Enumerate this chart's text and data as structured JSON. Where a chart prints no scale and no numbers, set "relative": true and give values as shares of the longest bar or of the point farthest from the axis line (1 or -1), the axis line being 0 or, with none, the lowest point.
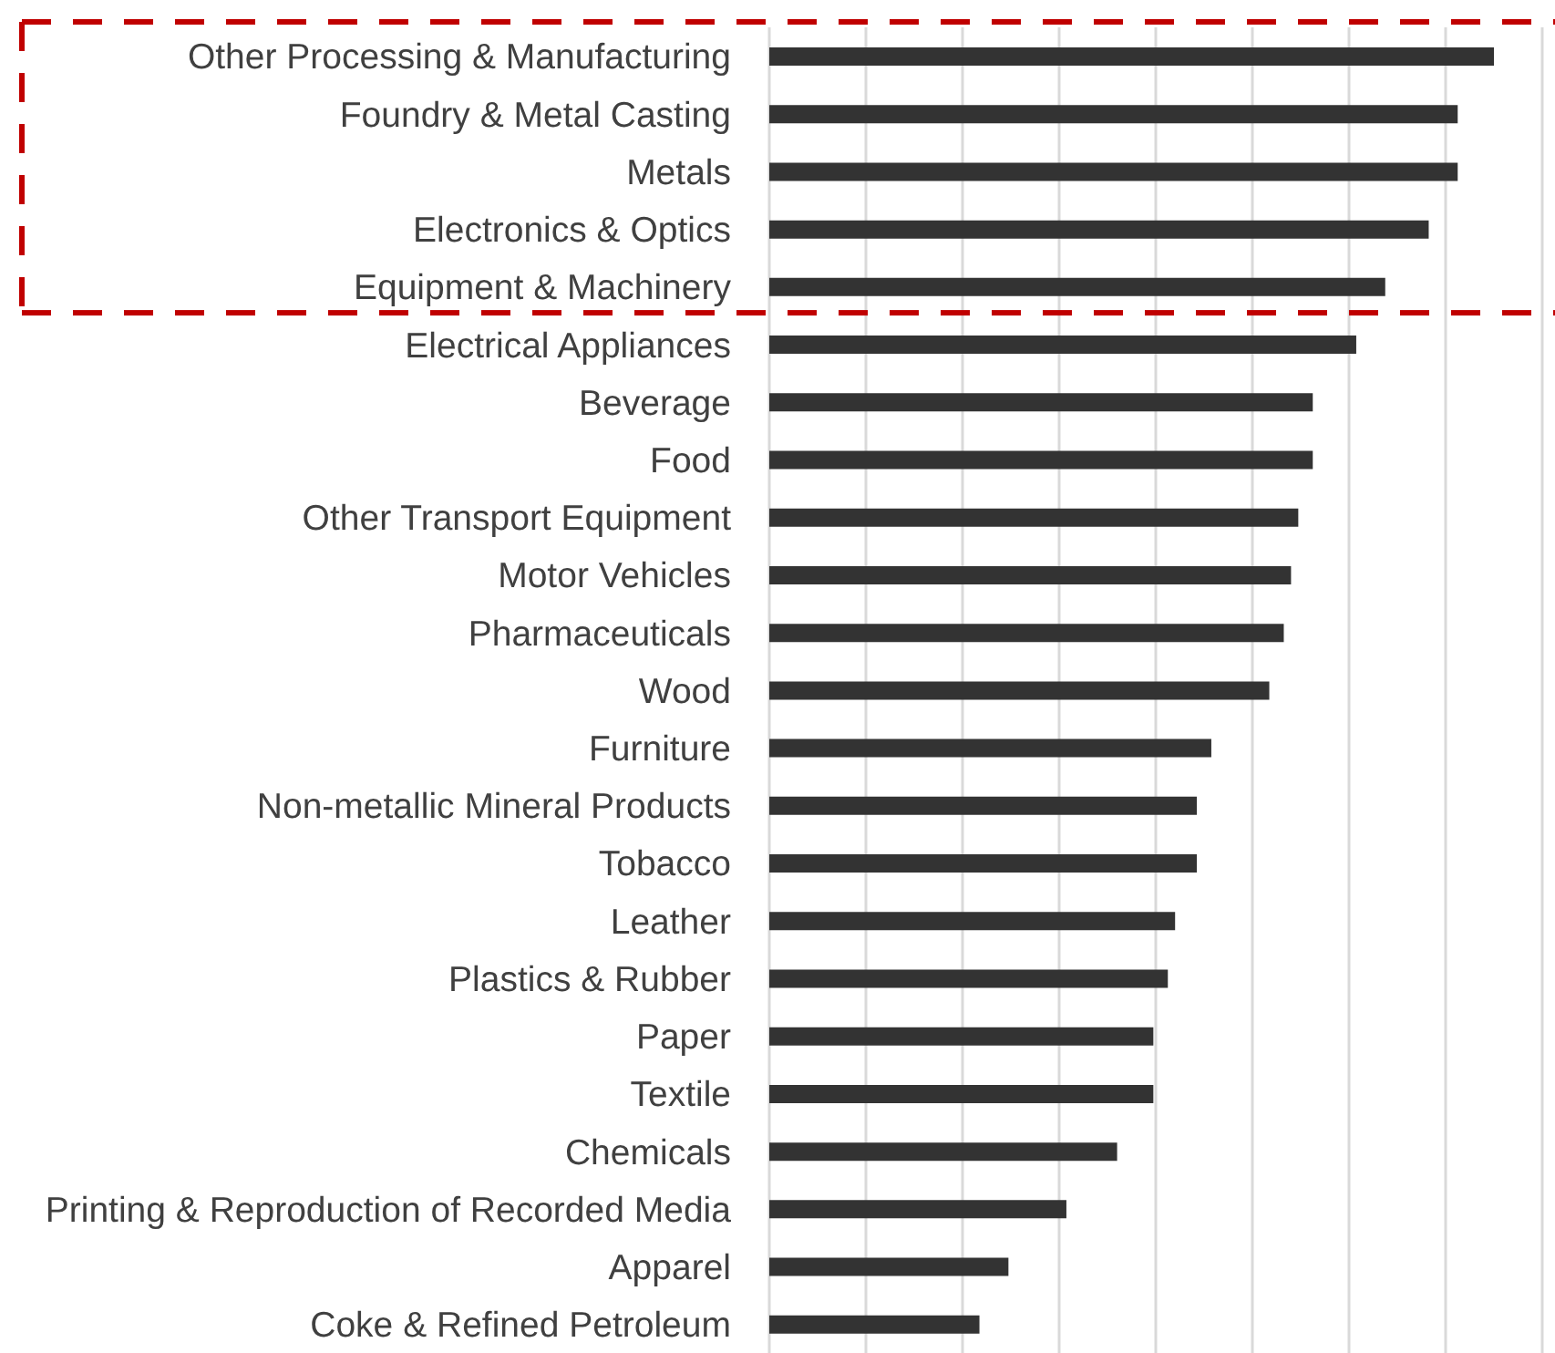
{
  "chart_data": {
    "type": "bar",
    "orientation": "horizontal",
    "relative": true,
    "categories": [
      "Other Processing & Manufacturing",
      "Foundry & Metal Casting",
      "Metals",
      "Electronics & Optics",
      "Equipment & Machinery",
      "Electrical Appliances",
      "Beverage",
      "Food",
      "Other Transport Equipment",
      "Motor Vehicles",
      "Pharmaceuticals",
      "Wood",
      "Furniture",
      "Non-metallic Mineral Products",
      "Tobacco",
      "Leather",
      "Plastics & Rubber",
      "Paper",
      "Textile",
      "Chemicals",
      "Printing & Reproduction of Recorded Media",
      "Apparel",
      "Coke & Refined Petroleum"
    ],
    "values": [
      1,
      0.95,
      0.95,
      0.91,
      0.85,
      0.81,
      0.75,
      0.75,
      0.73,
      0.72,
      0.71,
      0.69,
      0.61,
      0.59,
      0.59,
      0.56,
      0.55,
      0.53,
      0.53,
      0.48,
      0.41,
      0.33,
      0.29
    ],
    "color": "#333333",
    "grid": "x"
  }
}
